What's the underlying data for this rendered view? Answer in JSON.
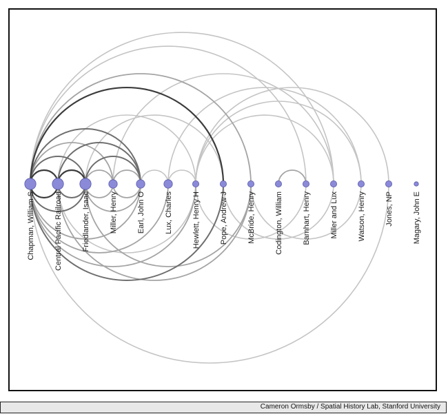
{
  "diagram": {
    "type": "arc-diagram",
    "node_color": "#8a8ad8",
    "node_stroke": "#5a5aa8",
    "nodes": [
      {
        "label": "Chapman, William S",
        "weight": 3
      },
      {
        "label": "Central Pacific Railroad",
        "weight": 3
      },
      {
        "label": "Friedlander, Isaac",
        "weight": 3
      },
      {
        "label": "Miller, Henry",
        "weight": 2
      },
      {
        "label": "Earl, John O",
        "weight": 2
      },
      {
        "label": "Lux, Charles",
        "weight": 2
      },
      {
        "label": "Hewlett, Henry H",
        "weight": 1
      },
      {
        "label": "Pope, Andrew J",
        "weight": 1
      },
      {
        "label": "McBride, Henry",
        "weight": 1
      },
      {
        "label": "Codington, William",
        "weight": 1
      },
      {
        "label": "Barnhart, Henry",
        "weight": 1
      },
      {
        "label": "Miller and Lux",
        "weight": 1
      },
      {
        "label": "Watson, Henry",
        "weight": 1
      },
      {
        "label": "Jones, NP",
        "weight": 1
      },
      {
        "label": "Magary, John E",
        "weight": 0
      }
    ],
    "links": [
      {
        "source": 0,
        "target": 1,
        "strength": 3,
        "side": "top"
      },
      {
        "source": 1,
        "target": 2,
        "strength": 3,
        "side": "top"
      },
      {
        "source": 0,
        "target": 2,
        "strength": 2,
        "side": "top"
      },
      {
        "source": 0,
        "target": 3,
        "strength": 1,
        "side": "top"
      },
      {
        "source": 0,
        "target": 4,
        "strength": 2,
        "side": "top"
      },
      {
        "source": 1,
        "target": 4,
        "strength": 2,
        "side": "top"
      },
      {
        "source": 2,
        "target": 4,
        "strength": 2,
        "side": "top"
      },
      {
        "source": 3,
        "target": 4,
        "strength": 1,
        "side": "top"
      },
      {
        "source": 2,
        "target": 3,
        "strength": 1,
        "side": "top"
      },
      {
        "source": 4,
        "target": 5,
        "strength": 0,
        "side": "top"
      },
      {
        "source": 5,
        "target": 6,
        "strength": 0,
        "side": "top"
      },
      {
        "source": 0,
        "target": 7,
        "strength": 3,
        "side": "top"
      },
      {
        "source": 0,
        "target": 8,
        "strength": 1,
        "side": "top"
      },
      {
        "source": 1,
        "target": 6,
        "strength": 0,
        "side": "top"
      },
      {
        "source": 2,
        "target": 7,
        "strength": 0,
        "side": "top"
      },
      {
        "source": 0,
        "target": 10,
        "strength": 0,
        "side": "top"
      },
      {
        "source": 0,
        "target": 11,
        "strength": 0,
        "side": "top"
      },
      {
        "source": 3,
        "target": 11,
        "strength": 0,
        "side": "top"
      },
      {
        "source": 5,
        "target": 12,
        "strength": 0,
        "side": "top"
      },
      {
        "source": 6,
        "target": 12,
        "strength": 0,
        "side": "top"
      },
      {
        "source": 6,
        "target": 11,
        "strength": 0,
        "side": "top"
      },
      {
        "source": 6,
        "target": 13,
        "strength": 0,
        "side": "top"
      },
      {
        "source": 9,
        "target": 10,
        "strength": 1,
        "side": "top"
      },
      {
        "source": 0,
        "target": 1,
        "strength": 3,
        "side": "bottom"
      },
      {
        "source": 1,
        "target": 2,
        "strength": 2,
        "side": "bottom"
      },
      {
        "source": 0,
        "target": 2,
        "strength": 2,
        "side": "bottom"
      },
      {
        "source": 2,
        "target": 3,
        "strength": 1,
        "side": "bottom"
      },
      {
        "source": 3,
        "target": 4,
        "strength": 1,
        "side": "bottom"
      },
      {
        "source": 2,
        "target": 4,
        "strength": 1,
        "side": "bottom"
      },
      {
        "source": 0,
        "target": 4,
        "strength": 1,
        "side": "bottom"
      },
      {
        "source": 0,
        "target": 5,
        "strength": 1,
        "side": "bottom"
      },
      {
        "source": 0,
        "target": 6,
        "strength": 1,
        "side": "bottom"
      },
      {
        "source": 0,
        "target": 7,
        "strength": 2,
        "side": "bottom"
      },
      {
        "source": 1,
        "target": 6,
        "strength": 0,
        "side": "bottom"
      },
      {
        "source": 1,
        "target": 8,
        "strength": 1,
        "side": "bottom"
      },
      {
        "source": 2,
        "target": 8,
        "strength": 1,
        "side": "bottom"
      },
      {
        "source": 0,
        "target": 13,
        "strength": 0,
        "side": "bottom"
      },
      {
        "source": 7,
        "target": 11,
        "strength": 0,
        "side": "bottom"
      },
      {
        "source": 8,
        "target": 12,
        "strength": 0,
        "side": "bottom"
      },
      {
        "source": 6,
        "target": 10,
        "strength": 0,
        "side": "bottom"
      }
    ]
  },
  "credit": "Cameron Ormsby / Spatial History Lab, Stanford University"
}
